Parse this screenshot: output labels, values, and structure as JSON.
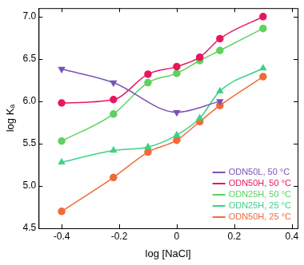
{
  "chart_data": {
    "type": "line",
    "x_label": "log [NaCl]",
    "y_label": "log Kₐ",
    "xlim": [
      -0.48,
      0.42
    ],
    "xticks": [
      -0.4,
      -0.2,
      0,
      0.2,
      0.4
    ],
    "ylim": [
      4.5,
      7.1
    ],
    "yticks": [
      4.5,
      {
        "value": 5,
        "label": "5.0"
      },
      5.5,
      {
        "value": 6,
        "label": "6.0"
      },
      6.5,
      {
        "value": 7,
        "label": "7.0"
      }
    ],
    "grid": false,
    "legend": "lower right",
    "series": [
      {
        "name": "ODN50L, 50 °C",
        "color": "#7a52b5",
        "marker": "triangle_down",
        "line_style": "solid",
        "x": [
          -0.4,
          -0.22,
          0,
          0.15
        ],
        "values": [
          6.38,
          6.22,
          5.87,
          6.0
        ]
      },
      {
        "name": "ODN50H, 50 °C",
        "color": "#e8175d",
        "marker": "circle",
        "line_style": "solid",
        "x": [
          -0.4,
          -0.22,
          -0.1,
          0,
          0.08,
          0.15,
          0.3
        ],
        "values": [
          5.98,
          6.02,
          6.32,
          6.41,
          6.52,
          6.74,
          7.0
        ]
      },
      {
        "name": "ODN25H, 50 °C",
        "color": "#5ed25e",
        "marker": "circle",
        "line_style": "solid",
        "x": [
          -0.4,
          -0.22,
          -0.1,
          0,
          0.08,
          0.15,
          0.3
        ],
        "values": [
          5.53,
          5.85,
          6.22,
          6.33,
          6.48,
          6.6,
          6.86
        ]
      },
      {
        "name": "ODN25H, 25 °C",
        "color": "#3fd08a",
        "marker": "triangle",
        "line_style": "solid",
        "x": [
          -0.4,
          -0.22,
          -0.1,
          0,
          0.08,
          0.15,
          0.3
        ],
        "values": [
          5.28,
          5.42,
          5.46,
          5.6,
          5.8,
          6.12,
          6.39
        ]
      },
      {
        "name": "ODN50H, 25 °C",
        "color": "#f06a3a",
        "marker": "circle",
        "line_style": "solid",
        "x": [
          -0.4,
          -0.22,
          -0.1,
          0,
          0.08,
          0.15,
          0.3
        ],
        "values": [
          4.7,
          5.1,
          5.4,
          5.54,
          5.76,
          5.95,
          6.29
        ]
      }
    ]
  }
}
